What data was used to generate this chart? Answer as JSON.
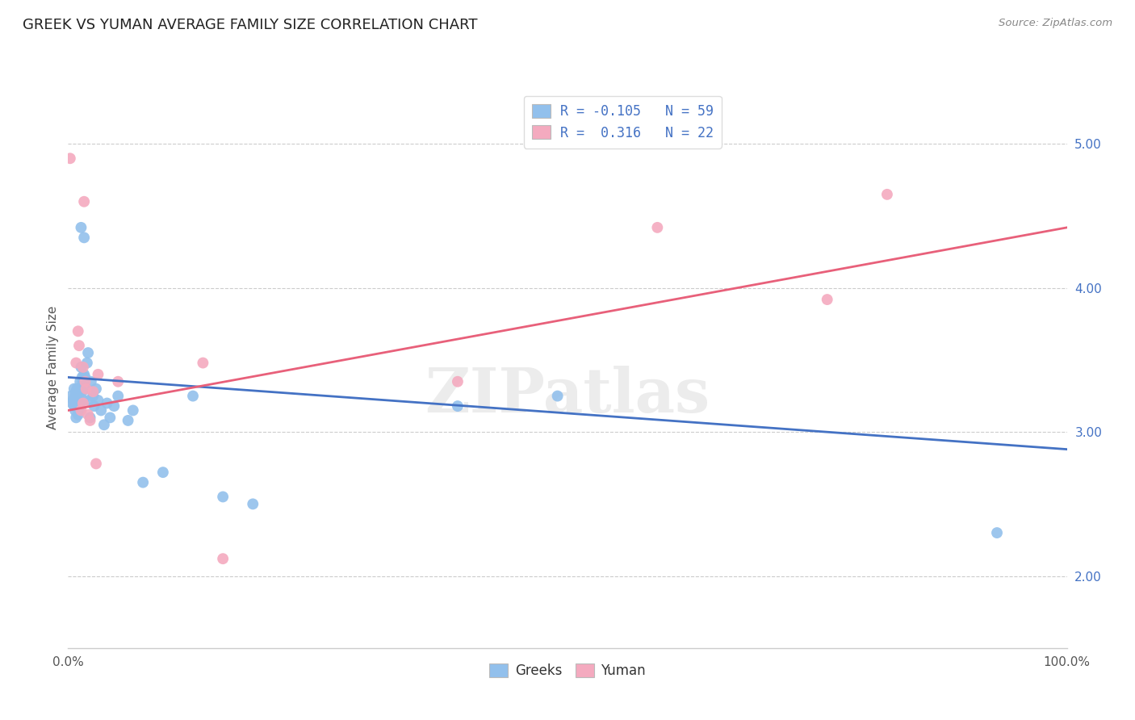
{
  "title": "GREEK VS YUMAN AVERAGE FAMILY SIZE CORRELATION CHART",
  "source": "Source: ZipAtlas.com",
  "ylabel": "Average Family Size",
  "xmin": 0.0,
  "xmax": 1.0,
  "ymin": 1.5,
  "ymax": 5.4,
  "yticks": [
    2.0,
    3.0,
    4.0,
    5.0
  ],
  "legend_labels": [
    "Greeks",
    "Yuman"
  ],
  "legend_r_line1": "R = -0.105   N = 59",
  "legend_r_line2": "R =  0.316   N = 22",
  "blue_scatter_color": "#92C0EC",
  "pink_scatter_color": "#F4AABF",
  "blue_line_color": "#4472C4",
  "pink_line_color": "#E8607A",
  "greek_x": [
    0.003,
    0.004,
    0.005,
    0.006,
    0.006,
    0.007,
    0.007,
    0.007,
    0.008,
    0.008,
    0.008,
    0.009,
    0.009,
    0.009,
    0.01,
    0.01,
    0.01,
    0.01,
    0.011,
    0.011,
    0.011,
    0.012,
    0.012,
    0.012,
    0.013,
    0.013,
    0.014,
    0.014,
    0.015,
    0.015,
    0.016,
    0.016,
    0.017,
    0.018,
    0.019,
    0.02,
    0.021,
    0.022,
    0.023,
    0.025,
    0.026,
    0.028,
    0.03,
    0.033,
    0.036,
    0.039,
    0.042,
    0.046,
    0.05,
    0.06,
    0.065,
    0.075,
    0.095,
    0.125,
    0.155,
    0.185,
    0.39,
    0.49,
    0.93
  ],
  "greek_y": [
    3.25,
    3.2,
    3.22,
    3.18,
    3.3,
    3.2,
    3.25,
    3.15,
    3.2,
    3.1,
    3.28,
    3.22,
    3.18,
    3.3,
    3.12,
    3.2,
    3.25,
    3.3,
    3.18,
    3.22,
    3.15,
    3.28,
    3.2,
    3.35,
    3.45,
    4.42,
    3.38,
    3.28,
    3.35,
    3.22,
    3.4,
    4.35,
    3.38,
    3.3,
    3.48,
    3.55,
    3.22,
    3.1,
    3.35,
    3.25,
    3.18,
    3.3,
    3.22,
    3.15,
    3.05,
    3.2,
    3.1,
    3.18,
    3.25,
    3.08,
    3.15,
    2.65,
    2.72,
    3.25,
    2.55,
    2.5,
    3.18,
    3.25,
    2.3
  ],
  "yuman_x": [
    0.002,
    0.01,
    0.011,
    0.013,
    0.015,
    0.016,
    0.017,
    0.018,
    0.02,
    0.022,
    0.025,
    0.028,
    0.03,
    0.05,
    0.135,
    0.155,
    0.39,
    0.59,
    0.76,
    0.82,
    0.015,
    0.008
  ],
  "yuman_y": [
    4.9,
    3.7,
    3.6,
    3.15,
    3.45,
    4.6,
    3.35,
    3.3,
    3.12,
    3.08,
    3.28,
    2.78,
    3.4,
    3.35,
    3.48,
    2.12,
    3.35,
    4.42,
    3.92,
    4.65,
    3.2,
    3.48
  ],
  "watermark": "ZIPatlas",
  "greek_trend_x0": 0.0,
  "greek_trend_y0": 3.38,
  "greek_trend_x1": 1.0,
  "greek_trend_y1": 2.88,
  "yuman_trend_x0": 0.0,
  "yuman_trend_y0": 3.15,
  "yuman_trend_x1": 1.0,
  "yuman_trend_y1": 4.42
}
